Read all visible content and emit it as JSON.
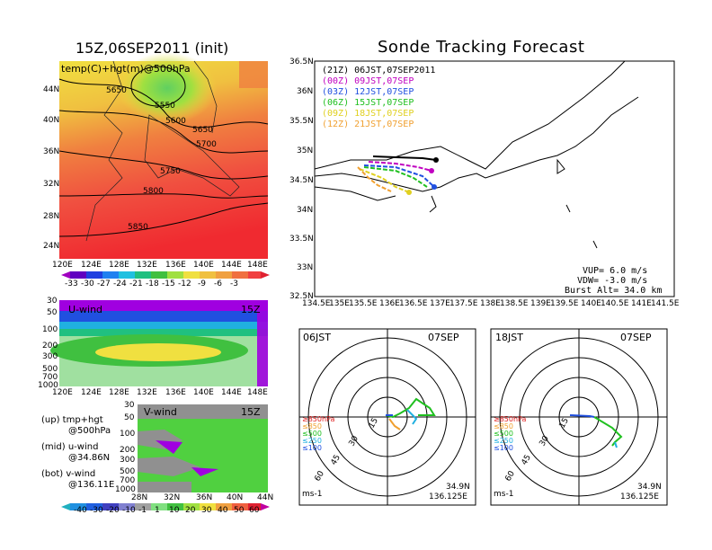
{
  "titles": {
    "left": "15Z,06SEP2011 (init)",
    "main": "Sonde Tracking Forecast",
    "temp_field": "temp(C)+hgt(m)@500hPa"
  },
  "temp_map": {
    "lat_ticks": [
      "44N",
      "40N",
      "36N",
      "32N",
      "28N",
      "24N"
    ],
    "lon_ticks": [
      "120E",
      "124E",
      "128E",
      "132E",
      "136E",
      "140E",
      "144E",
      "148E"
    ],
    "contours": [
      "5550",
      "5600",
      "5650",
      "5650",
      "5700",
      "5750",
      "5800",
      "5850"
    ],
    "colorbar": [
      "-33",
      "-30",
      "-27",
      "-24",
      "-21",
      "-18",
      "-15",
      "-12",
      "-9",
      "-6",
      "-3"
    ]
  },
  "uwind": {
    "label": "U-wind",
    "time": "15Z",
    "levels": [
      "30",
      "50",
      "100",
      "200",
      "300",
      "500",
      "700",
      "1000"
    ],
    "lon_ticks": [
      "120E",
      "124E",
      "128E",
      "132E",
      "136E",
      "140E",
      "144E",
      "148E"
    ]
  },
  "vwind": {
    "label": "V-wind",
    "time": "15Z",
    "levels": [
      "30",
      "50",
      "100",
      "200",
      "300",
      "500",
      "700",
      "1000"
    ],
    "lat_ticks": [
      "28N",
      "32N",
      "36N",
      "40N",
      "44N"
    ],
    "colorbar": [
      "-40",
      "-30",
      "-20",
      "-10",
      "-1",
      "1",
      "10",
      "20",
      "30",
      "40",
      "50",
      "60"
    ]
  },
  "notes": {
    "up": "(up) tmp+hgt",
    "up2": "@500hPa",
    "mid": "(mid) u-wind",
    "mid2": "@34.86N",
    "bot": "(bot) v-wind",
    "bot2": "@136.11E"
  },
  "track_map": {
    "lat_ticks": [
      "36.5N",
      "36N",
      "35.5N",
      "35N",
      "34.5N",
      "34N",
      "33.5N",
      "33N",
      "32.5N"
    ],
    "lon_ticks": [
      "134.5E",
      "135E",
      "135.5E",
      "136E",
      "136.5E",
      "137E",
      "137.5E",
      "138E",
      "138.5E",
      "139E",
      "139.5E",
      "140E",
      "140.5E",
      "141E",
      "141.5E"
    ],
    "legend": [
      {
        "text": "(21Z) 06JST,07SEP2011",
        "color": "#000000"
      },
      {
        "text": "(00Z) 09JST,07SEP",
        "color": "#c000c0"
      },
      {
        "text": "(03Z) 12JST,07SEP",
        "color": "#2050e0"
      },
      {
        "text": "(06Z) 15JST,07SEP",
        "color": "#20c020"
      },
      {
        "text": "(09Z) 18JST,07SEP",
        "color": "#e0d020"
      },
      {
        "text": "(12Z) 21JST,07SEP",
        "color": "#f0a030"
      }
    ],
    "params": [
      "VUP= 6.0 m/s",
      "VDW= -3.0 m/s",
      "Burst Alt= 34.0 km"
    ]
  },
  "hodo_left": {
    "time": "06JST",
    "date": "07SEP",
    "rings": [
      "15",
      "30",
      "45",
      "60"
    ],
    "levels": [
      "≥850hPa",
      "≤850",
      "≤500",
      "≤250",
      "≤100"
    ],
    "unit": "ms-1",
    "lat": "34.9N",
    "lon": "136.125E"
  },
  "hodo_right": {
    "time": "18JST",
    "date": "07SEP",
    "rings": [
      "15",
      "30",
      "45",
      "60"
    ],
    "levels": [
      "≥850hPa",
      "≤850",
      "≤500",
      "≤250",
      "≤100"
    ],
    "unit": "ms-1",
    "lat": "34.9N",
    "lon": "136.125E"
  }
}
